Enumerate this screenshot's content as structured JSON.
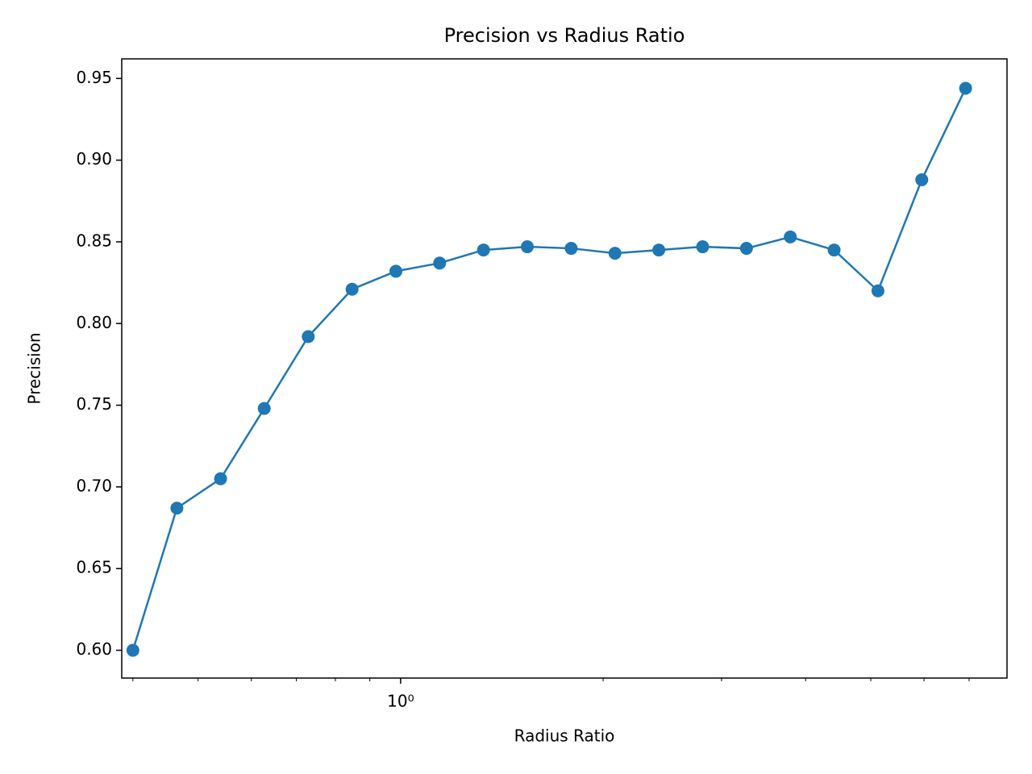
{
  "chart_data": {
    "type": "line",
    "title": "Precision vs Radius Ratio",
    "x_label": "Radius Ratio",
    "y_label": "Precision",
    "x": [
      0.4,
      0.465,
      0.54,
      0.627,
      0.729,
      0.847,
      0.984,
      1.143,
      1.328,
      1.543,
      1.793,
      2.083,
      2.42,
      2.812,
      3.267,
      3.796,
      4.41,
      5.124,
      5.953,
      6.917
    ],
    "series": [
      {
        "name": "Precision",
        "color": "#1f77b4",
        "values": [
          0.6,
          0.687,
          0.705,
          0.748,
          0.792,
          0.821,
          0.832,
          0.837,
          0.845,
          0.847,
          0.846,
          0.843,
          0.845,
          0.847,
          0.846,
          0.853,
          0.845,
          0.82,
          0.888,
          0.944
        ]
      }
    ],
    "xscale": "log",
    "xlim": [
      0.385,
      7.97
    ],
    "xticks": [
      {
        "value": 1,
        "label": "10⁰"
      }
    ],
    "xminorticks": [
      0.4,
      0.5,
      0.6,
      0.7,
      0.8,
      0.9,
      2,
      3,
      4,
      5,
      6,
      7
    ],
    "ylim": [
      0.583,
      0.962
    ],
    "yticks": [
      {
        "value": 0.6,
        "label": "0.60"
      },
      {
        "value": 0.65,
        "label": "0.65"
      },
      {
        "value": 0.7,
        "label": "0.70"
      },
      {
        "value": 0.75,
        "label": "0.75"
      },
      {
        "value": 0.8,
        "label": "0.80"
      },
      {
        "value": 0.85,
        "label": "0.85"
      },
      {
        "value": 0.9,
        "label": "0.90"
      },
      {
        "value": 0.95,
        "label": "0.95"
      }
    ],
    "grid": false
  }
}
